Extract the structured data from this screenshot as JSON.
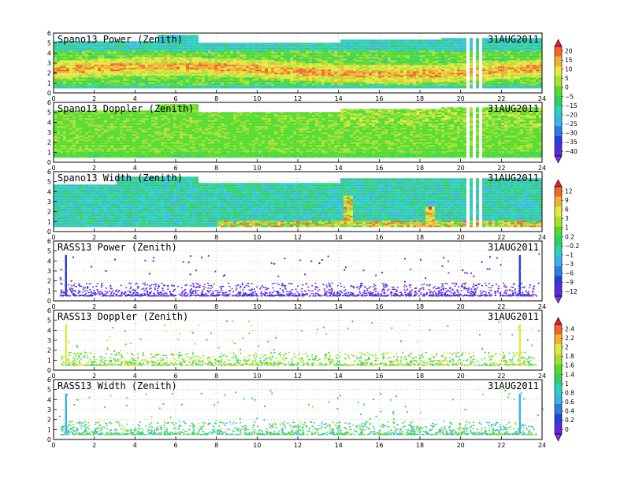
{
  "chart_data": [
    {
      "type": "heatmap",
      "title": "Spano13 Power (Zenith)",
      "date": "31AUG2011",
      "x_ticks": [
        "0",
        "2",
        "4",
        "6",
        "8",
        "10",
        "12",
        "14",
        "16",
        "18",
        "20",
        "22",
        "24"
      ],
      "y_ticks": [
        "0",
        "1",
        "2",
        "3",
        "4",
        "5",
        "6"
      ],
      "xlim": [
        0,
        24
      ],
      "ylim": [
        0,
        6
      ],
      "colorbar_group": 0
    },
    {
      "type": "heatmap",
      "title": "Spano13 Doppler (Zenith)",
      "date": "31AUG2011",
      "x_ticks": [
        "0",
        "2",
        "4",
        "6",
        "8",
        "10",
        "12",
        "14",
        "16",
        "18",
        "20",
        "22",
        "24"
      ],
      "y_ticks": [
        "0",
        "1",
        "2",
        "3",
        "4",
        "5",
        "6"
      ],
      "xlim": [
        0,
        24
      ],
      "ylim": [
        0,
        6
      ],
      "colorbar_group": 0
    },
    {
      "type": "heatmap",
      "title": "Spano13 Width (Zenith)",
      "date": "31AUG2011",
      "x_ticks": [
        "0",
        "2",
        "4",
        "6",
        "8",
        "10",
        "12",
        "14",
        "16",
        "18",
        "20",
        "22",
        "24"
      ],
      "y_ticks": [
        "0",
        "1",
        "2",
        "3",
        "4",
        "5",
        "6"
      ],
      "xlim": [
        0,
        24
      ],
      "ylim": [
        0,
        6
      ],
      "colorbar_group": 1
    },
    {
      "type": "heatmap",
      "title": "RASS13 Power (Zenith)",
      "date": "31AUG2011",
      "x_ticks": [
        "0",
        "2",
        "4",
        "6",
        "8",
        "10",
        "12",
        "14",
        "16",
        "18",
        "20",
        "22",
        "24"
      ],
      "y_ticks": [
        "0",
        "1",
        "2",
        "3",
        "4",
        "5",
        "6"
      ],
      "xlim": [
        0,
        24
      ],
      "ylim": [
        0,
        6
      ],
      "colorbar_group": 1
    },
    {
      "type": "heatmap",
      "title": "RASS13 Doppler (Zenith)",
      "date": "31AUG2011",
      "x_ticks": [
        "0",
        "2",
        "4",
        "6",
        "8",
        "10",
        "12",
        "14",
        "16",
        "18",
        "20",
        "22",
        "24"
      ],
      "y_ticks": [
        "0",
        "1",
        "2",
        "3",
        "4",
        "5",
        "6"
      ],
      "xlim": [
        0,
        24
      ],
      "ylim": [
        0,
        6
      ],
      "colorbar_group": 2
    },
    {
      "type": "heatmap",
      "title": "RASS13 Width (Zenith)",
      "date": "31AUG2011",
      "x_ticks": [
        "0",
        "2",
        "4",
        "6",
        "8",
        "10",
        "12",
        "14",
        "16",
        "18",
        "20",
        "22",
        "24"
      ],
      "y_ticks": [
        "0",
        "1",
        "2",
        "3",
        "4",
        "5",
        "6"
      ],
      "xlim": [
        0,
        24
      ],
      "ylim": [
        0,
        6
      ],
      "colorbar_group": 2
    }
  ],
  "colorbars": [
    {
      "labels": [
        "20",
        "15",
        "10",
        "5",
        "0",
        "−5",
        "−15",
        "−20",
        "−25",
        "−30",
        "−35",
        "−40"
      ]
    },
    {
      "labels": [
        "12",
        "9",
        "6",
        "3",
        "1",
        "0.2",
        "−0.2",
        "−1",
        "−3",
        "−6",
        "−9",
        "−12"
      ]
    },
    {
      "labels": [
        "2.4",
        "2.2",
        "2",
        "1.8",
        "1.6",
        "1.4",
        "1",
        "0.8",
        "0.6",
        "0.4",
        "0.2",
        "0"
      ]
    }
  ],
  "palette": [
    "#8a2be2",
    "#5a2ae0",
    "#2a3be0",
    "#2a7ee0",
    "#38b4e8",
    "#2ad0c0",
    "#30d060",
    "#50dc28",
    "#a8e030",
    "#e6e83a",
    "#f0b030",
    "#f06828",
    "#e01e3c"
  ]
}
